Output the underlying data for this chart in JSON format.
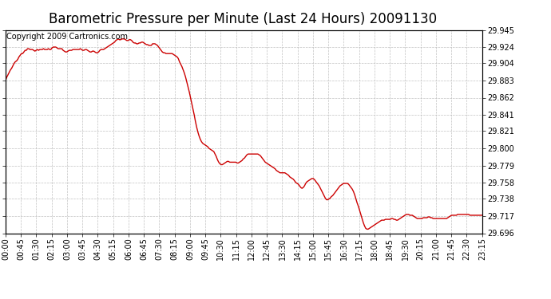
{
  "title": "Barometric Pressure per Minute (Last 24 Hours) 20091130",
  "copyright_text": "Copyright 2009 Cartronics.com",
  "line_color": "#cc0000",
  "background_color": "#ffffff",
  "plot_bg_color": "#ffffff",
  "grid_color": "#bbbbbb",
  "ylim": [
    29.696,
    29.945
  ],
  "yticks": [
    29.696,
    29.717,
    29.738,
    29.758,
    29.779,
    29.8,
    29.821,
    29.841,
    29.862,
    29.883,
    29.904,
    29.924,
    29.945
  ],
  "xtick_labels": [
    "00:00",
    "00:45",
    "01:30",
    "02:15",
    "03:00",
    "03:45",
    "04:30",
    "05:15",
    "06:00",
    "06:45",
    "07:30",
    "08:15",
    "09:00",
    "09:45",
    "10:30",
    "11:15",
    "12:00",
    "12:45",
    "13:30",
    "14:15",
    "15:00",
    "15:45",
    "16:30",
    "17:15",
    "18:00",
    "18:45",
    "19:30",
    "20:15",
    "21:00",
    "21:45",
    "22:30",
    "23:15"
  ],
  "title_fontsize": 12,
  "copyright_fontsize": 7,
  "tick_fontsize": 7,
  "line_width": 1.0,
  "pressure_data": [
    29.883,
    29.887,
    29.89,
    29.893,
    29.896,
    29.898,
    29.901,
    29.904,
    29.906,
    29.907,
    29.909,
    29.912,
    29.914,
    29.916,
    29.916,
    29.918,
    29.92,
    29.92,
    29.922,
    29.922,
    29.921,
    29.921,
    29.921,
    29.92,
    29.919,
    29.92,
    29.921,
    29.92,
    29.921,
    29.921,
    29.921,
    29.922,
    29.921,
    29.921,
    29.921,
    29.922,
    29.921,
    29.921,
    29.923,
    29.924,
    29.924,
    29.924,
    29.923,
    29.922,
    29.922,
    29.922,
    29.922,
    29.92,
    29.919,
    29.918,
    29.918,
    29.919,
    29.92,
    29.92,
    29.92,
    29.921,
    29.921,
    29.921,
    29.921,
    29.921,
    29.921,
    29.922,
    29.921,
    29.92,
    29.92,
    29.921,
    29.921,
    29.92,
    29.919,
    29.918,
    29.918,
    29.919,
    29.919,
    29.918,
    29.917,
    29.917,
    29.918,
    29.92,
    29.921,
    29.921,
    29.921,
    29.922,
    29.923,
    29.924,
    29.925,
    29.926,
    29.927,
    29.928,
    29.929,
    29.93,
    29.932,
    29.933,
    29.934,
    29.933,
    29.933,
    29.934,
    29.934,
    29.934,
    29.933,
    29.932,
    29.932,
    29.933,
    29.933,
    29.932,
    29.93,
    29.929,
    29.929,
    29.928,
    29.928,
    29.929,
    29.929,
    29.93,
    29.93,
    29.929,
    29.928,
    29.927,
    29.927,
    29.926,
    29.926,
    29.926,
    29.928,
    29.928,
    29.928,
    29.927,
    29.926,
    29.924,
    29.922,
    29.92,
    29.918,
    29.917,
    29.917,
    29.916,
    29.916,
    29.916,
    29.916,
    29.916,
    29.916,
    29.915,
    29.914,
    29.913,
    29.912,
    29.91,
    29.906,
    29.903,
    29.9,
    29.896,
    29.892,
    29.887,
    29.881,
    29.875,
    29.869,
    29.862,
    29.855,
    29.848,
    29.841,
    29.833,
    29.826,
    29.82,
    29.815,
    29.811,
    29.808,
    29.806,
    29.805,
    29.804,
    29.803,
    29.802,
    29.8,
    29.799,
    29.798,
    29.797,
    29.796,
    29.793,
    29.79,
    29.786,
    29.783,
    29.781,
    29.78,
    29.78,
    29.781,
    29.782,
    29.783,
    29.784,
    29.784,
    29.783,
    29.783,
    29.783,
    29.783,
    29.783,
    29.783,
    29.782,
    29.782,
    29.783,
    29.784,
    29.785,
    29.787,
    29.788,
    29.79,
    29.792,
    29.793,
    29.793,
    29.793,
    29.793,
    29.793,
    29.793,
    29.793,
    29.793,
    29.793,
    29.792,
    29.791,
    29.789,
    29.787,
    29.785,
    29.783,
    29.782,
    29.781,
    29.78,
    29.779,
    29.778,
    29.777,
    29.776,
    29.775,
    29.773,
    29.772,
    29.771,
    29.77,
    29.77,
    29.77,
    29.77,
    29.77,
    29.769,
    29.768,
    29.767,
    29.765,
    29.764,
    29.763,
    29.762,
    29.76,
    29.758,
    29.757,
    29.756,
    29.754,
    29.752,
    29.751,
    29.752,
    29.754,
    29.757,
    29.759,
    29.76,
    29.761,
    29.762,
    29.763,
    29.763,
    29.762,
    29.76,
    29.758,
    29.756,
    29.754,
    29.751,
    29.748,
    29.745,
    29.742,
    29.739,
    29.737,
    29.737,
    29.738,
    29.739,
    29.741,
    29.742,
    29.744,
    29.746,
    29.748,
    29.75,
    29.752,
    29.754,
    29.755,
    29.756,
    29.757,
    29.757,
    29.757,
    29.757,
    29.756,
    29.754,
    29.752,
    29.75,
    29.747,
    29.743,
    29.738,
    29.733,
    29.729,
    29.724,
    29.719,
    29.714,
    29.709,
    29.705,
    29.702,
    29.701,
    29.701,
    29.702,
    29.703,
    29.704,
    29.705,
    29.706,
    29.707,
    29.708,
    29.709,
    29.71,
    29.711,
    29.712,
    29.712,
    29.712,
    29.713,
    29.713,
    29.713,
    29.713,
    29.713,
    29.714,
    29.714,
    29.713,
    29.713,
    29.712,
    29.712,
    29.713,
    29.714,
    29.715,
    29.716,
    29.717,
    29.718,
    29.719,
    29.719,
    29.719,
    29.718,
    29.718,
    29.718,
    29.717,
    29.716,
    29.715,
    29.714,
    29.714,
    29.714,
    29.714,
    29.714,
    29.715,
    29.715,
    29.715,
    29.715,
    29.716,
    29.716,
    29.715,
    29.715,
    29.714,
    29.714,
    29.714,
    29.714,
    29.714,
    29.714,
    29.714,
    29.714,
    29.714,
    29.714,
    29.714,
    29.714,
    29.715,
    29.716,
    29.717,
    29.718,
    29.718,
    29.718,
    29.718,
    29.718,
    29.719,
    29.719,
    29.719,
    29.719,
    29.719,
    29.719,
    29.719,
    29.719,
    29.719,
    29.719,
    29.718,
    29.718,
    29.718,
    29.718,
    29.718,
    29.718,
    29.718,
    29.718,
    29.718,
    29.718,
    29.718
  ]
}
